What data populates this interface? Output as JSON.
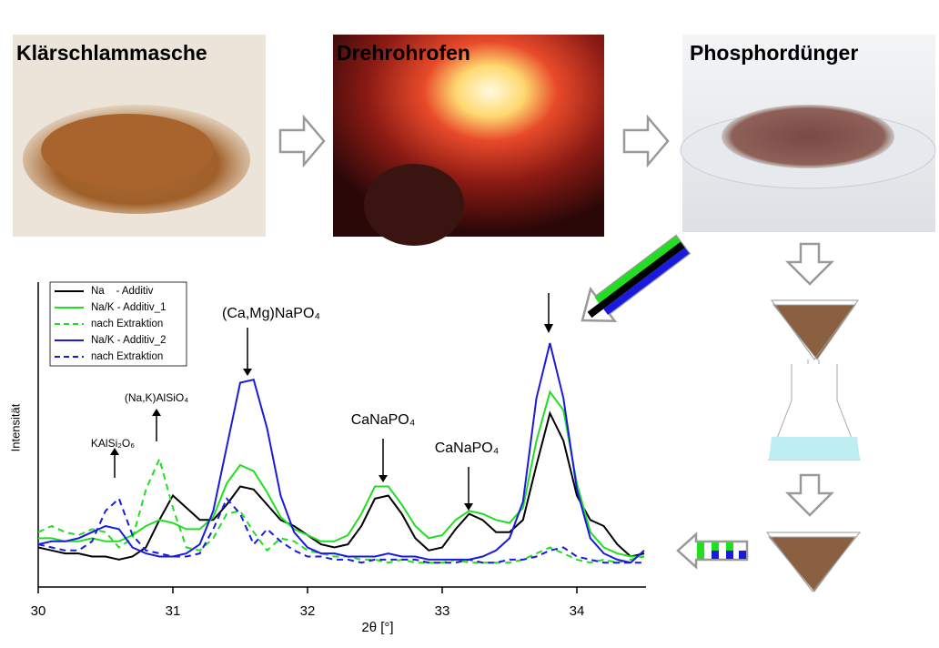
{
  "photos": [
    {
      "caption": "Klärschlammasche"
    },
    {
      "caption": "Drehrohrofen"
    },
    {
      "caption": "Phosphordünger"
    }
  ],
  "chart_data": {
    "type": "line",
    "xlabel": "2θ [°]",
    "ylabel": "Intensität",
    "xlim": [
      30,
      34.5
    ],
    "xticks": [
      30,
      31,
      32,
      33,
      34
    ],
    "ylim": [
      0,
      100
    ],
    "x": [
      30.0,
      30.1,
      30.2,
      30.3,
      30.4,
      30.5,
      30.6,
      30.7,
      30.8,
      30.9,
      31.0,
      31.1,
      31.2,
      31.3,
      31.4,
      31.5,
      31.6,
      31.7,
      31.8,
      31.9,
      32.0,
      32.1,
      32.2,
      32.3,
      32.4,
      32.5,
      32.6,
      32.7,
      32.8,
      32.9,
      33.0,
      33.1,
      33.2,
      33.3,
      33.4,
      33.5,
      33.6,
      33.7,
      33.8,
      33.9,
      34.0,
      34.1,
      34.2,
      34.3,
      34.4,
      34.5
    ],
    "series": [
      {
        "name": "Na    - Additiv",
        "color": "#000000",
        "dashed": false,
        "values": [
          13,
          12,
          11,
          11,
          10,
          10,
          9,
          10,
          13,
          22,
          30,
          26,
          22,
          22,
          27,
          33,
          32,
          27,
          22,
          20,
          17,
          14,
          13,
          14,
          20,
          29,
          30,
          24,
          16,
          12,
          13,
          19,
          24,
          22,
          18,
          18,
          22,
          40,
          57,
          48,
          30,
          22,
          20,
          14,
          10,
          11
        ]
      },
      {
        "name": "Na/K - Additiv_1",
        "color": "#22dd22",
        "dashed": false,
        "values": [
          16,
          16,
          15,
          15,
          16,
          15,
          15,
          17,
          20,
          22,
          21,
          19,
          19,
          23,
          34,
          40,
          38,
          31,
          23,
          19,
          17,
          15,
          15,
          17,
          24,
          33,
          33,
          27,
          20,
          16,
          17,
          22,
          25,
          24,
          22,
          21,
          26,
          48,
          64,
          58,
          34,
          18,
          13,
          11,
          10,
          10
        ]
      },
      {
        "name": "nach Extraktion",
        "color": "#22dd22",
        "dashed": true,
        "values": [
          18,
          20,
          18,
          17,
          19,
          18,
          13,
          16,
          32,
          42,
          26,
          13,
          12,
          16,
          24,
          25,
          18,
          12,
          16,
          15,
          12,
          11,
          10,
          10,
          9,
          9,
          8,
          9,
          8,
          8,
          8,
          9,
          8,
          8,
          8,
          8,
          9,
          11,
          13,
          11,
          9,
          8,
          9,
          8,
          9,
          10
        ]
      },
      {
        "name": "Na/K - Additiv_2",
        "color": "#1a1adf",
        "dashed": false,
        "values": [
          14,
          15,
          15,
          16,
          18,
          20,
          19,
          13,
          11,
          10,
          10,
          11,
          14,
          25,
          46,
          67,
          68,
          52,
          30,
          18,
          13,
          11,
          11,
          10,
          10,
          10,
          11,
          10,
          10,
          9,
          9,
          9,
          9,
          10,
          12,
          16,
          28,
          62,
          80,
          62,
          32,
          16,
          11,
          9,
          8,
          12
        ]
      },
      {
        "name": "nach Extraktion",
        "color": "#1a1adf",
        "dashed": true,
        "values": [
          14,
          13,
          12,
          12,
          15,
          25,
          29,
          17,
          12,
          11,
          10,
          10,
          11,
          19,
          29,
          24,
          14,
          19,
          15,
          12,
          10,
          10,
          9,
          9,
          8,
          9,
          9,
          9,
          9,
          8,
          8,
          8,
          9,
          8,
          8,
          9,
          9,
          10,
          12,
          13,
          10,
          9,
          8,
          8,
          8,
          8
        ]
      }
    ],
    "annotations": [
      "(Ca,Mg)NaPO₄",
      "CaNaPO₄",
      "CaNaPO₄",
      "KAlSi₂O₆",
      "(Na,K)AlSiO₄"
    ]
  }
}
